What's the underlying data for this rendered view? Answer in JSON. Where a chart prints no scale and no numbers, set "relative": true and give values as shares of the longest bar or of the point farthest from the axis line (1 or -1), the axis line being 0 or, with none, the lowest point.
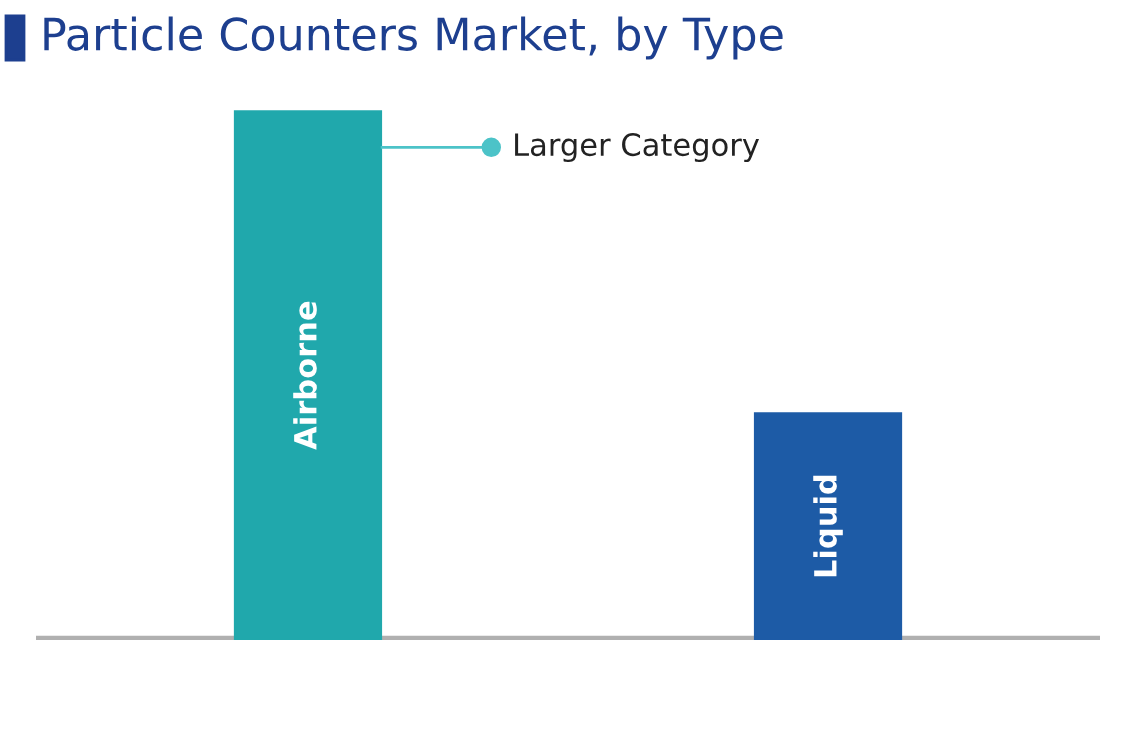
{
  "chart_data": {
    "type": "bar",
    "title": "Particle Counters Market, by Type",
    "relative": true,
    "categories": [
      "Airborne",
      "Liquid"
    ],
    "values": [
      1,
      0.43
    ],
    "colors": [
      "#20a8ac",
      "#1d5ba6"
    ],
    "annotations": [
      "Larger Category"
    ]
  }
}
